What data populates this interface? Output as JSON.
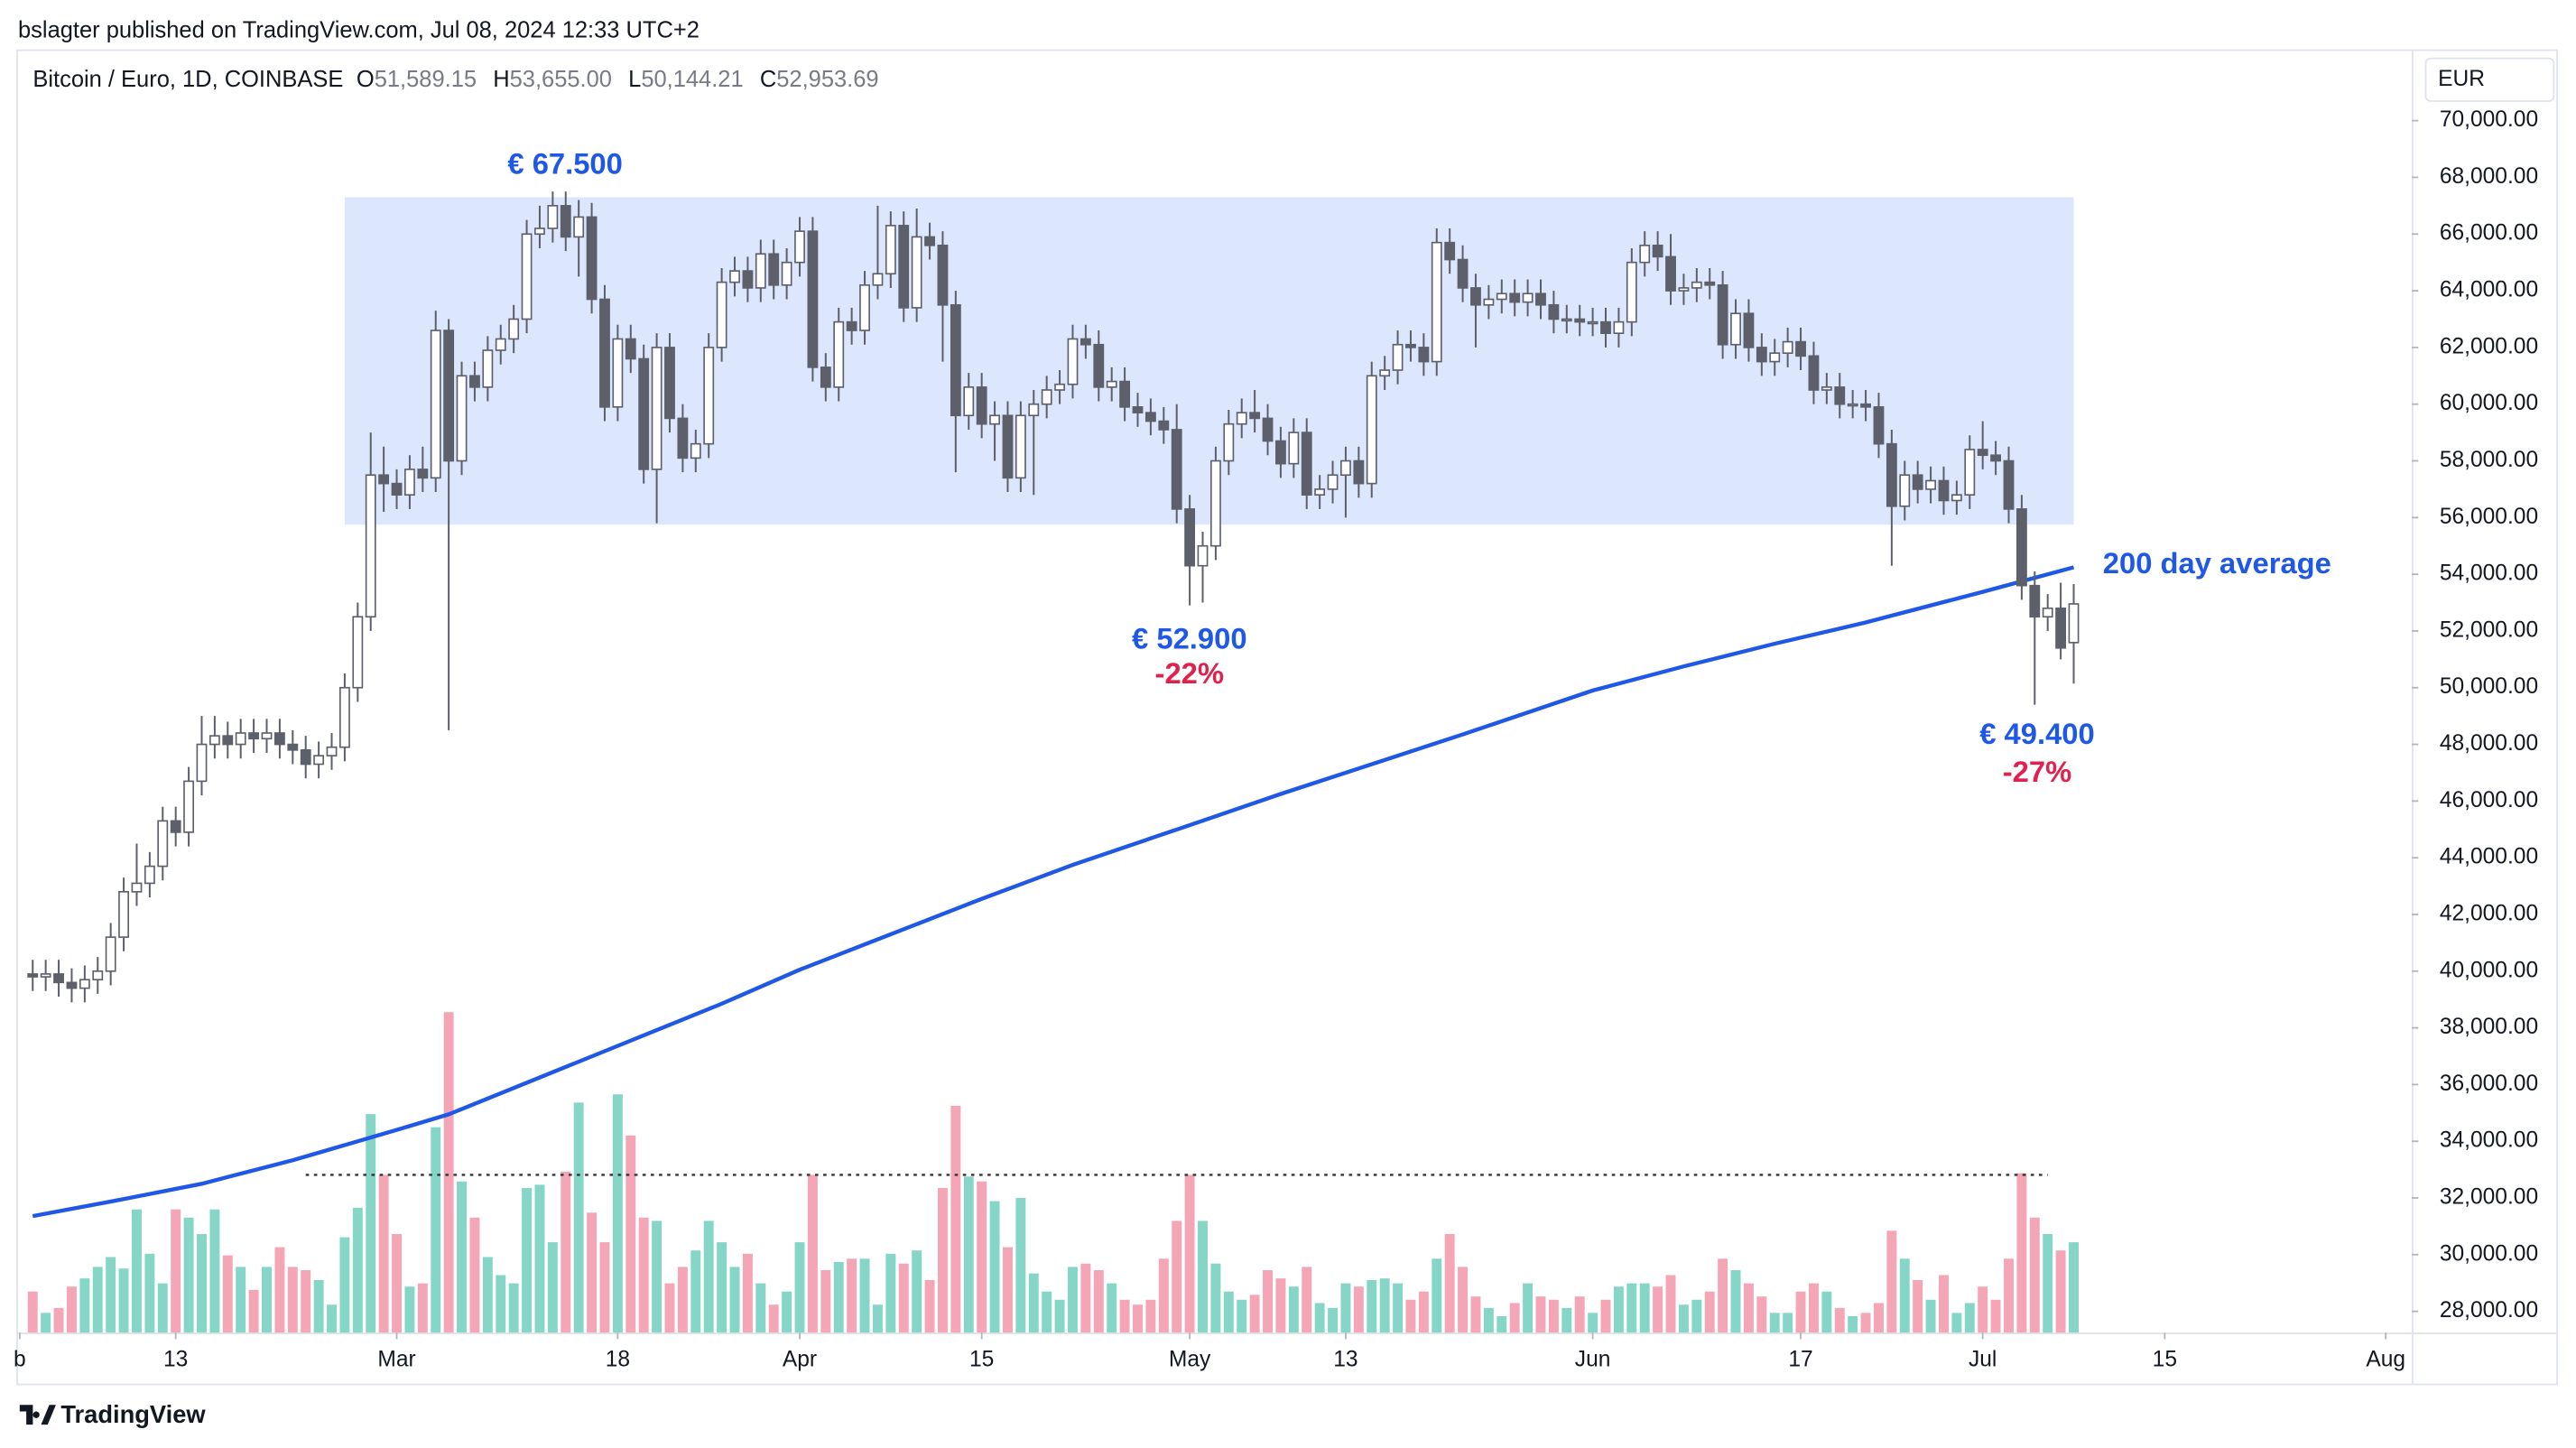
{
  "header": {
    "publisher": "bslagter published on TradingView.com, Jul 08, 2024 12:33 UTC+2"
  },
  "footer": {
    "brand": "TradingView"
  },
  "chart_data": {
    "type": "candlestick",
    "symbol": "Bitcoin / Euro, 1D, COINBASE",
    "ohlc": [
      {
        "key": "O",
        "value": "51,589.15"
      },
      {
        "key": "H",
        "value": "53,655.00"
      },
      {
        "key": "L",
        "value": "50,144.21"
      },
      {
        "key": "C",
        "value": "52,953.69"
      }
    ],
    "currency": "EUR",
    "categories": [
      "Feb 2",
      "Feb 3",
      "Feb 4",
      "Feb 5",
      "Feb 6",
      "Feb 7",
      "Feb 8",
      "Feb 9",
      "Feb 10",
      "Feb 11",
      "Feb 12",
      "Feb 13",
      "Feb 14",
      "Feb 15",
      "Feb 16",
      "Feb 17",
      "Feb 18",
      "Feb 19",
      "Feb 20",
      "Feb 21",
      "Feb 22",
      "Feb 23",
      "Feb 24",
      "Feb 25",
      "Feb 26",
      "Feb 27",
      "Feb 28",
      "Feb 29",
      "Mar 1",
      "Mar 2",
      "Mar 3",
      "Mar 4",
      "Mar 5",
      "Mar 6",
      "Mar 7",
      "Mar 8",
      "Mar 9",
      "Mar 10",
      "Mar 11",
      "Mar 12",
      "Mar 13",
      "Mar 14",
      "Mar 15",
      "Mar 16",
      "Mar 17",
      "Mar 18",
      "Mar 19",
      "Mar 20",
      "Mar 21",
      "Mar 22",
      "Mar 23",
      "Mar 24",
      "Mar 25",
      "Mar 26",
      "Mar 27",
      "Mar 28",
      "Mar 29",
      "Mar 30",
      "Mar 31",
      "Apr 1",
      "Apr 2",
      "Apr 3",
      "Apr 4",
      "Apr 5",
      "Apr 6",
      "Apr 7",
      "Apr 8",
      "Apr 9",
      "Apr 10",
      "Apr 11",
      "Apr 12",
      "Apr 13",
      "Apr 14",
      "Apr 15",
      "Apr 16",
      "Apr 17",
      "Apr 18",
      "Apr 19",
      "Apr 20",
      "Apr 21",
      "Apr 22",
      "Apr 23",
      "Apr 24",
      "Apr 25",
      "Apr 26",
      "Apr 27",
      "Apr 28",
      "Apr 29",
      "Apr 30",
      "May 1",
      "May 2",
      "May 3",
      "May 4",
      "May 5",
      "May 6",
      "May 7",
      "May 8",
      "May 9",
      "May 10",
      "May 11",
      "May 12",
      "May 13",
      "May 14",
      "May 15",
      "May 16",
      "May 17",
      "May 18",
      "May 19",
      "May 20",
      "May 21",
      "May 22",
      "May 23",
      "May 24",
      "May 25",
      "May 26",
      "May 27",
      "May 28",
      "May 29",
      "May 30",
      "May 31",
      "Jun 1",
      "Jun 2",
      "Jun 3",
      "Jun 4",
      "Jun 5",
      "Jun 6",
      "Jun 7",
      "Jun 8",
      "Jun 9",
      "Jun 10",
      "Jun 11",
      "Jun 12",
      "Jun 13",
      "Jun 14",
      "Jun 15",
      "Jun 16",
      "Jun 17",
      "Jun 18",
      "Jun 19",
      "Jun 20",
      "Jun 21",
      "Jun 22",
      "Jun 23",
      "Jun 24",
      "Jun 25",
      "Jun 26",
      "Jun 27",
      "Jun 28",
      "Jun 29",
      "Jun 30",
      "Jul 1",
      "Jul 2",
      "Jul 3",
      "Jul 4",
      "Jul 5",
      "Jul 6",
      "Jul 7",
      "Jul 8"
    ],
    "open": [
      39900,
      39800,
      39900,
      39600,
      39400,
      39700,
      40000,
      41200,
      42800,
      43100,
      43700,
      45300,
      44900,
      46700,
      48000,
      48300,
      48000,
      48400,
      48200,
      48400,
      48000,
      47800,
      47300,
      47600,
      47900,
      50000,
      52500,
      57500,
      57200,
      56800,
      57700,
      57400,
      62600,
      58000,
      61000,
      60600,
      61900,
      62300,
      63000,
      66000,
      66200,
      67000,
      65900,
      66600,
      63700,
      59900,
      62300,
      61600,
      57700,
      62000,
      59500,
      58100,
      58600,
      62000,
      64300,
      64700,
      64100,
      65300,
      64200,
      65000,
      66100,
      61300,
      60600,
      62900,
      62600,
      64200,
      64600,
      66300,
      63400,
      65900,
      65600,
      63500,
      59600,
      60600,
      59300,
      59600,
      57400,
      59600,
      60000,
      60500,
      60700,
      62300,
      62100,
      60600,
      60800,
      59900,
      59700,
      59400,
      59100,
      56300,
      54300,
      55000,
      58000,
      59300,
      59700,
      59500,
      58700,
      57900,
      59000,
      56800,
      57000,
      57500,
      58000,
      57200,
      61000,
      61200,
      62100,
      62000,
      61500,
      65700,
      65100,
      64100,
      63500,
      63700,
      63900,
      63600,
      63900,
      63500,
      63000,
      63000,
      62900,
      62900,
      62500,
      62900,
      65000,
      65600,
      65200,
      64000,
      64100,
      64300,
      64200,
      62100,
      63200,
      62000,
      61500,
      61800,
      62200,
      61700,
      60500,
      60600,
      60000,
      60000,
      59900,
      58600,
      56400,
      57500,
      57000,
      57300,
      56600,
      56800,
      58400,
      58200,
      58000,
      56300,
      53600,
      52500,
      52800,
      51589.15
    ],
    "high": [
      40400,
      40400,
      40400,
      40100,
      40200,
      40500,
      41700,
      43300,
      44500,
      44200,
      45800,
      45800,
      47200,
      49000,
      49000,
      48800,
      48900,
      48900,
      48900,
      48900,
      48500,
      48300,
      48100,
      48400,
      50500,
      53000,
      59000,
      58500,
      57700,
      58200,
      58500,
      63300,
      63000,
      61500,
      61500,
      62400,
      62800,
      63500,
      66500,
      67000,
      67500,
      67500,
      67200,
      67100,
      64200,
      62800,
      62800,
      62100,
      62500,
      62500,
      60000,
      59100,
      62500,
      64800,
      65200,
      65200,
      65800,
      65800,
      65500,
      66600,
      66600,
      61800,
      63400,
      63400,
      64700,
      67000,
      66800,
      66800,
      66900,
      66400,
      66100,
      64000,
      61100,
      61100,
      60100,
      60100,
      60100,
      60500,
      61000,
      61200,
      62800,
      62800,
      62600,
      61300,
      61300,
      60400,
      60200,
      59900,
      60000,
      56800,
      55500,
      58500,
      59800,
      60200,
      60500,
      60000,
      59200,
      59500,
      59500,
      57500,
      58000,
      58500,
      58500,
      61500,
      61700,
      62600,
      62600,
      62500,
      66200,
      66200,
      65600,
      64600,
      64200,
      64400,
      64400,
      64400,
      64400,
      64000,
      63500,
      63500,
      63400,
      63400,
      63400,
      65500,
      66100,
      66100,
      66000,
      64600,
      64800,
      64800,
      64700,
      63700,
      63700,
      62500,
      62300,
      62700,
      62700,
      62200,
      61100,
      61100,
      60500,
      60500,
      60400,
      59100,
      58000,
      58000,
      57800,
      57800,
      57300,
      58900,
      59400,
      58700,
      58500,
      56800,
      54100,
      53300,
      53700,
      53655
    ],
    "low": [
      39300,
      39300,
      39100,
      38900,
      38900,
      39200,
      39500,
      40700,
      42300,
      42600,
      43200,
      44400,
      44400,
      46200,
      47500,
      47500,
      47500,
      47700,
      47700,
      47500,
      47300,
      46800,
      46800,
      47100,
      47400,
      49500,
      52000,
      56200,
      56300,
      56300,
      56900,
      56900,
      48500,
      57500,
      60100,
      60100,
      61400,
      61800,
      62500,
      65500,
      65700,
      65400,
      64500,
      63200,
      59400,
      59400,
      61100,
      57200,
      55800,
      59000,
      57600,
      57600,
      58100,
      61500,
      63800,
      63600,
      63600,
      63700,
      63700,
      64500,
      60800,
      60100,
      60100,
      62100,
      62100,
      63700,
      64100,
      62900,
      62900,
      65100,
      61500,
      57600,
      59100,
      58800,
      58000,
      56900,
      56900,
      56800,
      59500,
      60000,
      60200,
      61600,
      60100,
      60100,
      59400,
      59200,
      58900,
      58600,
      55800,
      52900,
      53000,
      54500,
      57500,
      58800,
      59000,
      58200,
      57400,
      57400,
      56300,
      56300,
      56500,
      56000,
      56700,
      56700,
      60500,
      60700,
      61500,
      61000,
      61000,
      64600,
      63600,
      62000,
      63000,
      63200,
      63100,
      63100,
      63000,
      62500,
      62500,
      62400,
      62400,
      62000,
      62000,
      62400,
      64500,
      64700,
      63500,
      63500,
      63600,
      63700,
      61600,
      61600,
      61500,
      61000,
      61000,
      61300,
      61200,
      60000,
      60000,
      59500,
      59500,
      59400,
      58100,
      54300,
      55900,
      56500,
      56500,
      56100,
      56100,
      56300,
      57700,
      57500,
      55800,
      53100,
      49400,
      52000,
      51000,
      50144.21
    ],
    "close": [
      39800,
      39900,
      39600,
      39400,
      39700,
      40000,
      41200,
      42800,
      43100,
      43700,
      45300,
      44900,
      46700,
      48000,
      48300,
      48000,
      48400,
      48200,
      48400,
      48000,
      47800,
      47300,
      47600,
      47900,
      50000,
      52500,
      57500,
      57200,
      56800,
      57700,
      57400,
      62600,
      58000,
      61000,
      60600,
      61900,
      62300,
      63000,
      66000,
      66200,
      67000,
      65900,
      66600,
      63700,
      59900,
      62300,
      61600,
      57700,
      62000,
      59500,
      58100,
      58600,
      62000,
      64300,
      64700,
      64100,
      65300,
      64200,
      65000,
      66100,
      61300,
      60600,
      62900,
      62600,
      64200,
      64600,
      66300,
      63400,
      65900,
      65600,
      63500,
      59600,
      60600,
      59300,
      59600,
      57400,
      59600,
      60000,
      60500,
      60700,
      62300,
      62100,
      60600,
      60800,
      59900,
      59700,
      59400,
      59100,
      56300,
      54300,
      55000,
      58000,
      59300,
      59700,
      59500,
      58700,
      57900,
      59000,
      56800,
      57000,
      57500,
      58000,
      57200,
      61000,
      61200,
      62100,
      62000,
      61500,
      65700,
      65100,
      64100,
      63500,
      63700,
      63900,
      63600,
      63900,
      63500,
      63000,
      63000,
      62900,
      62900,
      62500,
      62900,
      65000,
      65600,
      65200,
      64000,
      64100,
      64300,
      64200,
      62100,
      63200,
      62000,
      61500,
      61800,
      62200,
      61700,
      60500,
      60600,
      60000,
      60000,
      59900,
      58600,
      56400,
      57500,
      57000,
      57300,
      56600,
      56800,
      58400,
      58200,
      58000,
      56300,
      53600,
      52500,
      52800,
      51400,
      52953.69
    ],
    "volume": [
      25,
      12,
      15,
      28,
      33,
      40,
      46,
      39,
      75,
      48,
      30,
      75,
      70,
      60,
      75,
      47,
      40,
      26,
      40,
      52,
      40,
      38,
      32,
      17,
      58,
      76,
      133,
      96,
      60,
      28,
      30,
      125,
      195,
      92,
      70,
      46,
      35,
      30,
      88,
      90,
      55,
      98,
      140,
      73,
      55,
      145,
      120,
      70,
      68,
      30,
      40,
      50,
      68,
      55,
      40,
      48,
      30,
      17,
      25,
      55,
      96,
      38,
      43,
      45,
      45,
      17,
      48,
      42,
      50,
      32,
      88,
      138,
      95,
      92,
      80,
      52,
      82,
      36,
      25,
      20,
      40,
      42,
      38,
      30,
      20,
      17,
      20,
      45,
      68,
      96,
      68,
      42,
      25,
      20,
      23,
      38,
      33,
      28,
      40,
      18,
      15,
      30,
      28,
      32,
      33,
      30,
      20,
      25,
      45,
      60,
      40,
      22,
      15,
      10,
      18,
      30,
      22,
      20,
      15,
      22,
      12,
      20,
      28,
      30,
      30,
      28,
      35,
      17,
      20,
      25,
      45,
      38,
      30,
      22,
      12,
      12,
      25,
      30,
      25,
      15,
      10,
      12,
      18,
      62,
      45,
      32,
      20,
      35,
      12,
      18,
      28,
      20,
      45,
      97,
      70,
      60,
      50,
      55
    ],
    "volume_reference": {
      "x": [
        "Feb 23",
        "Jul 6"
      ],
      "value": 96
    },
    "up_color": "#ffffff",
    "down_color": "#5d606b",
    "wick_color": "#5d606b",
    "volume_up_color": "#86d6c8",
    "volume_down_color": "#f4a5b6",
    "ma": {
      "name": "200 day average",
      "color": "#1f57e7",
      "x": [
        "Feb 2",
        "Feb 9",
        "Feb 15",
        "Feb 22",
        "Mar 1",
        "Mar 5",
        "Mar 12",
        "Mar 19",
        "Mar 26",
        "Apr 1",
        "Apr 8",
        "Apr 15",
        "Apr 22",
        "May 1",
        "May 8",
        "May 15",
        "May 22",
        "Jun 1",
        "Jun 8",
        "Jun 15",
        "Jun 22",
        "Jul 1",
        "Jul 8"
      ],
      "values": [
        31360,
        31960,
        32500,
        33330,
        34400,
        34950,
        36250,
        37550,
        38850,
        40050,
        41300,
        42550,
        43750,
        45150,
        46250,
        47300,
        48350,
        49900,
        50750,
        51550,
        52300,
        53380,
        54245
      ]
    },
    "range_box": {
      "x": [
        "Feb 26",
        "Jul 8"
      ],
      "y": [
        55750,
        67300
      ],
      "color": "#dce6fd"
    },
    "annotations": {
      "high": "€ 67.500",
      "low1": "€ 52.900",
      "low1_change": "-22%",
      "low2": "€ 49.400",
      "low2_change": "-27%"
    },
    "xlim": [
      "Feb 1",
      "Aug 3"
    ],
    "xticks": [
      {
        "value": "Feb 1",
        "label": "b"
      },
      {
        "value": "Feb 13",
        "label": "13"
      },
      {
        "value": "Mar 1",
        "label": "Mar"
      },
      {
        "value": "Mar 18",
        "label": "18"
      },
      {
        "value": "Apr 1",
        "label": "Apr"
      },
      {
        "value": "Apr 15",
        "label": "15"
      },
      {
        "value": "May 1",
        "label": "May"
      },
      {
        "value": "May 13",
        "label": "13"
      },
      {
        "value": "Jun 1",
        "label": "Jun"
      },
      {
        "value": "Jun 17",
        "label": "17"
      },
      {
        "value": "Jul 1",
        "label": "Jul"
      },
      {
        "value": "Jul 15",
        "label": "15"
      },
      {
        "value": "Aug 1",
        "label": "Aug"
      }
    ],
    "ylim": [
      27250,
      72400
    ],
    "yticks": [
      {
        "value": 28000,
        "label": "28,000.00"
      },
      {
        "value": 30000,
        "label": "30,000.00"
      },
      {
        "value": 32000,
        "label": "32,000.00"
      },
      {
        "value": 34000,
        "label": "34,000.00"
      },
      {
        "value": 36000,
        "label": "36,000.00"
      },
      {
        "value": 38000,
        "label": "38,000.00"
      },
      {
        "value": 40000,
        "label": "40,000.00"
      },
      {
        "value": 42000,
        "label": "42,000.00"
      },
      {
        "value": 44000,
        "label": "44,000.00"
      },
      {
        "value": 46000,
        "label": "46,000.00"
      },
      {
        "value": 48000,
        "label": "48,000.00"
      },
      {
        "value": 50000,
        "label": "50,000.00"
      },
      {
        "value": 52000,
        "label": "52,000.00"
      },
      {
        "value": 54000,
        "label": "54,000.00"
      },
      {
        "value": 56000,
        "label": "56,000.00"
      },
      {
        "value": 58000,
        "label": "58,000.00"
      },
      {
        "value": 60000,
        "label": "60,000.00"
      },
      {
        "value": 62000,
        "label": "62,000.00"
      },
      {
        "value": 64000,
        "label": "64,000.00"
      },
      {
        "value": 66000,
        "label": "66,000.00"
      },
      {
        "value": 68000,
        "label": "68,000.00"
      },
      {
        "value": 70000,
        "label": "70,000.00"
      }
    ],
    "grid": false
  }
}
